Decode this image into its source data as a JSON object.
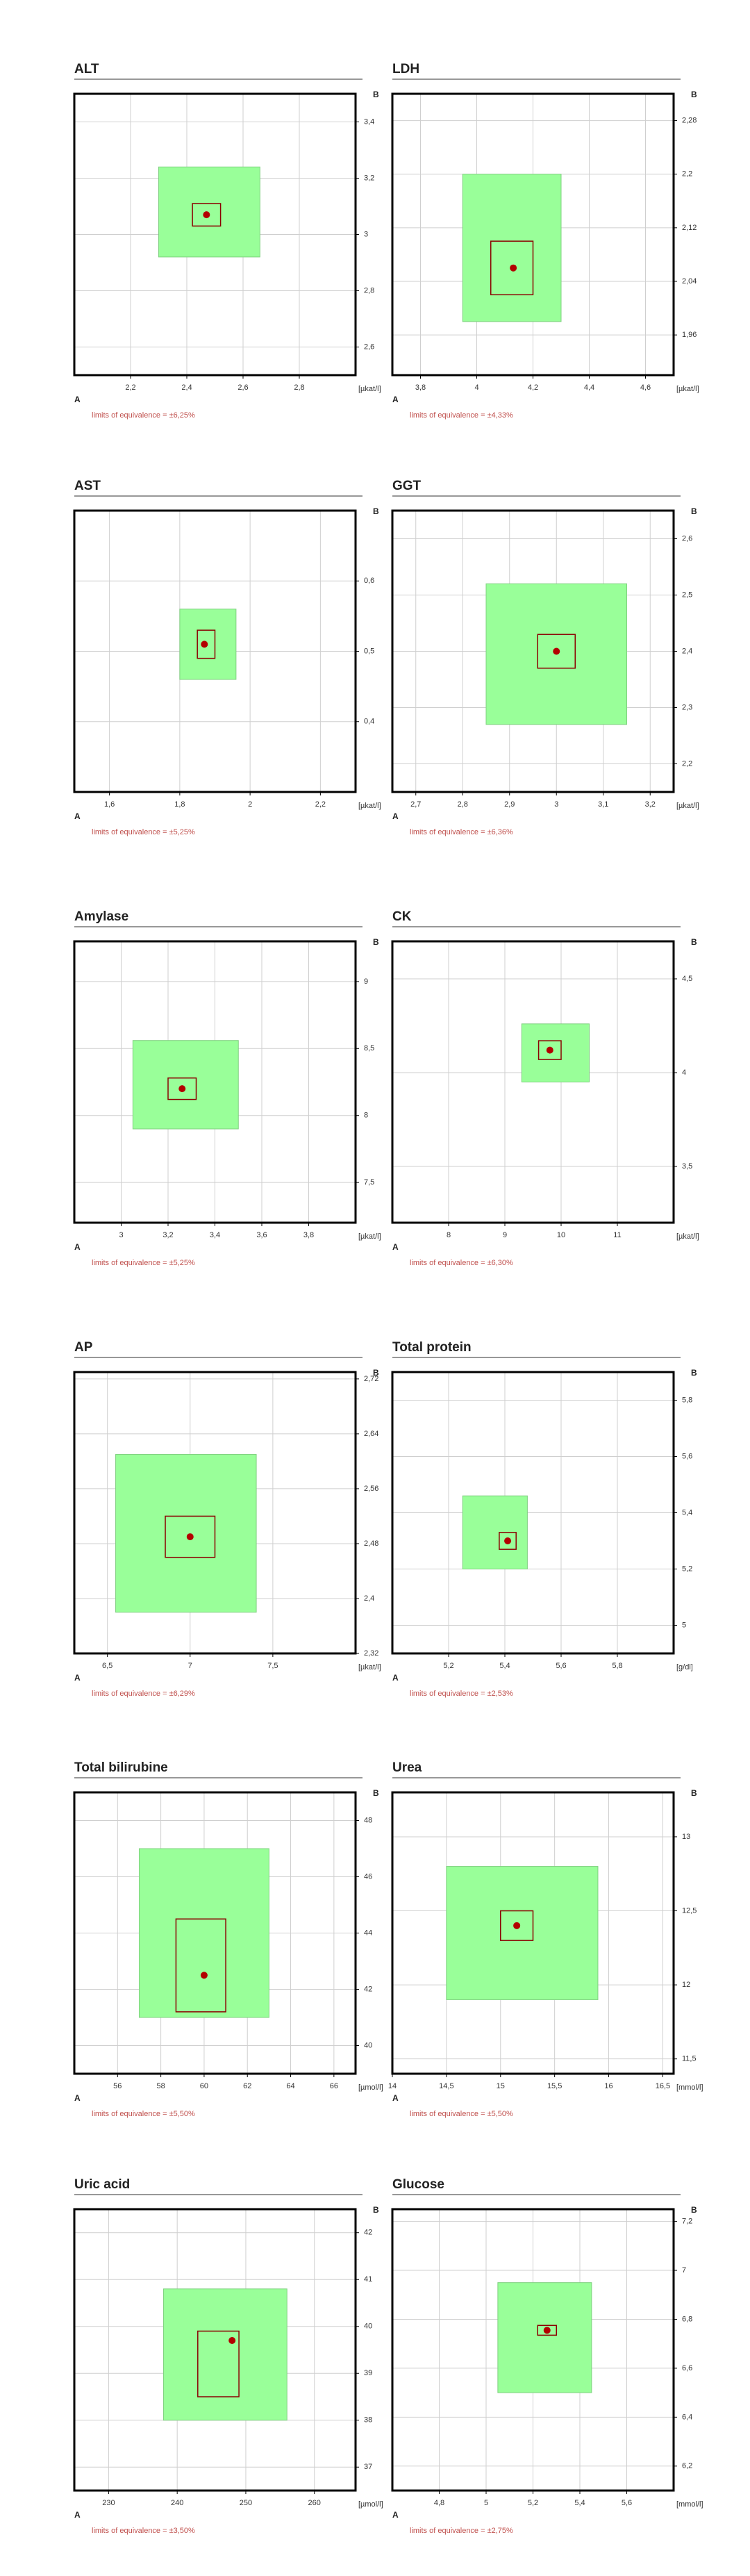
{
  "chart_data": [
    {
      "type": "equivalence",
      "title": "ALT",
      "x_label": "A",
      "y_label": "B",
      "unit": "[µkat/l]",
      "note": "limits of equivalence = ±6,25%",
      "xlim": [
        2.0,
        3.0
      ],
      "xticks": [
        {
          "value": 2.2,
          "label": "2,2"
        },
        {
          "value": 2.4,
          "label": "2,4"
        },
        {
          "value": 2.6,
          "label": "2,6"
        },
        {
          "value": 2.8,
          "label": "2,8"
        }
      ],
      "ylim": [
        2.5,
        3.5
      ],
      "yticks": [
        {
          "value": 2.6,
          "label": "2,6"
        },
        {
          "value": 2.8,
          "label": "2,8"
        },
        3,
        {
          "value": 3.2,
          "label": "3,2"
        },
        {
          "value": 3.4,
          "label": "3,4"
        }
      ],
      "limits_box": {
        "x": [
          2.3,
          2.66
        ],
        "y": [
          2.92,
          3.24
        ]
      },
      "confidence_box": {
        "x": [
          2.42,
          2.52
        ],
        "y": [
          3.03,
          3.11
        ]
      },
      "point": {
        "x": 2.47,
        "y": 3.07
      },
      "colors": {
        "limits": "#99ff99",
        "confidence": "#8b0000",
        "point": "#b30000"
      }
    },
    {
      "type": "equivalence",
      "title": "LDH",
      "x_label": "A",
      "y_label": "B",
      "unit": "[µkat/l]",
      "note": "limits of equivalence = ±4,33%",
      "xlim": [
        3.7,
        4.7
      ],
      "xticks": [
        {
          "value": 3.8,
          "label": "3,8"
        },
        4,
        {
          "value": 4.2,
          "label": "4,2"
        },
        {
          "value": 4.4,
          "label": "4,4"
        },
        {
          "value": 4.6,
          "label": "4,6"
        }
      ],
      "ylim": [
        1.9,
        2.32
      ],
      "yticks": [
        {
          "value": 1.96,
          "label": "1,96"
        },
        {
          "value": 2.04,
          "label": "2,04"
        },
        {
          "value": 2.12,
          "label": "2,12"
        },
        {
          "value": 2.2,
          "label": "2,2"
        },
        {
          "value": 2.28,
          "label": "2,28"
        }
      ],
      "limits_box": {
        "x": [
          3.95,
          4.3
        ],
        "y": [
          1.98,
          2.2
        ]
      },
      "confidence_box": {
        "x": [
          4.05,
          4.2
        ],
        "y": [
          2.02,
          2.1
        ]
      },
      "point": {
        "x": 4.13,
        "y": 2.06
      },
      "colors": {
        "limits": "#99ff99",
        "confidence": "#8b0000",
        "point": "#b30000"
      }
    },
    {
      "type": "equivalence",
      "title": "AST",
      "x_label": "A",
      "y_label": "B",
      "unit": "[µkat/l]",
      "note": "limits of equivalence = ±5,25%",
      "xlim": [
        1.5,
        2.3
      ],
      "xticks": [
        {
          "value": 1.6,
          "label": "1,6"
        },
        {
          "value": 1.8,
          "label": "1,8"
        },
        2,
        {
          "value": 2.2,
          "label": "2,2"
        }
      ],
      "ylim": [
        0.3,
        0.7
      ],
      "yticks": [
        {
          "value": 0.4,
          "label": "0,4"
        },
        {
          "value": 0.5,
          "label": "0,5"
        },
        {
          "value": 0.6,
          "label": "0,6"
        }
      ],
      "limits_box": {
        "x": [
          1.8,
          1.96
        ],
        "y": [
          0.46,
          0.56
        ]
      },
      "confidence_box": {
        "x": [
          1.85,
          1.9
        ],
        "y": [
          0.49,
          0.53
        ]
      },
      "point": {
        "x": 1.87,
        "y": 0.51
      },
      "colors": {
        "limits": "#99ff99",
        "confidence": "#8b0000",
        "point": "#b30000"
      }
    },
    {
      "type": "equivalence",
      "title": "GGT",
      "x_label": "A",
      "y_label": "B",
      "unit": "[µkat/l]",
      "note": "limits of equivalence = ±6,36%",
      "xlim": [
        2.65,
        3.25
      ],
      "xticks": [
        {
          "value": 2.7,
          "label": "2,7"
        },
        {
          "value": 2.8,
          "label": "2,8"
        },
        {
          "value": 2.9,
          "label": "2,9"
        },
        3,
        {
          "value": 3.1,
          "label": "3,1"
        },
        {
          "value": 3.2,
          "label": "3,2"
        }
      ],
      "ylim": [
        2.15,
        2.65
      ],
      "yticks": [
        {
          "value": 2.2,
          "label": "2,2"
        },
        {
          "value": 2.3,
          "label": "2,3"
        },
        {
          "value": 2.4,
          "label": "2,4"
        },
        {
          "value": 2.5,
          "label": "2,5"
        },
        {
          "value": 2.6,
          "label": "2,6"
        }
      ],
      "limits_box": {
        "x": [
          2.85,
          3.15
        ],
        "y": [
          2.27,
          2.52
        ]
      },
      "confidence_box": {
        "x": [
          2.96,
          3.04
        ],
        "y": [
          2.37,
          2.43
        ]
      },
      "point": {
        "x": 3.0,
        "y": 2.4
      },
      "colors": {
        "limits": "#99ff99",
        "confidence": "#8b0000",
        "point": "#b30000"
      }
    },
    {
      "type": "equivalence",
      "title": "Amylase",
      "x_label": "A",
      "y_label": "B",
      "unit": "[µkat/l]",
      "note": "limits of equivalence = ±5,25%",
      "xlim": [
        2.8,
        4.0
      ],
      "xticks": [
        3,
        {
          "value": 3.2,
          "label": "3,2"
        },
        {
          "value": 3.4,
          "label": "3,4"
        },
        {
          "value": 3.6,
          "label": "3,6"
        },
        {
          "value": 3.8,
          "label": "3,8"
        }
      ],
      "ylim": [
        7.2,
        9.3
      ],
      "yticks": [
        {
          "value": 7.5,
          "label": "7,5"
        },
        8,
        {
          "value": 8.5,
          "label": "8,5"
        },
        9
      ],
      "limits_box": {
        "x": [
          3.05,
          3.5
        ],
        "y": [
          7.9,
          8.56
        ]
      },
      "confidence_box": {
        "x": [
          3.2,
          3.32
        ],
        "y": [
          8.12,
          8.28
        ]
      },
      "point": {
        "x": 3.26,
        "y": 8.2
      },
      "colors": {
        "limits": "#99ff99",
        "confidence": "#8b0000",
        "point": "#b30000"
      }
    },
    {
      "type": "equivalence",
      "title": "CK",
      "x_label": "A",
      "y_label": "B",
      "unit": "[µkat/l]",
      "note": "limits of equivalence = ±6,30%",
      "xlim": [
        7,
        12
      ],
      "xticks": [
        8,
        9,
        10,
        11
      ],
      "ylim": [
        3.2,
        4.7
      ],
      "yticks": [
        {
          "value": 3.5,
          "label": "3,5"
        },
        4,
        {
          "value": 4.5,
          "label": "4,5"
        }
      ],
      "limits_box": {
        "x": [
          9.3,
          10.5
        ],
        "y": [
          3.95,
          4.26
        ]
      },
      "confidence_box": {
        "x": [
          9.6,
          10.0
        ],
        "y": [
          4.07,
          4.17
        ]
      },
      "point": {
        "x": 9.8,
        "y": 4.12
      },
      "colors": {
        "limits": "#99ff99",
        "confidence": "#8b0000",
        "point": "#b30000"
      }
    },
    {
      "type": "equivalence",
      "title": "AP",
      "x_label": "A",
      "y_label": "B",
      "unit": "[µkat/l]",
      "note": "limits of equivalence = ±6,29%",
      "xlim": [
        6.3,
        8.0
      ],
      "xticks": [
        {
          "value": 6.5,
          "label": "6,5"
        },
        7,
        {
          "value": 7.5,
          "label": "7,5"
        }
      ],
      "ylim": [
        2.32,
        2.73
      ],
      "yticks": [
        {
          "value": 2.32,
          "label": "2,32"
        },
        {
          "value": 2.4,
          "label": "2,4"
        },
        {
          "value": 2.48,
          "label": "2,48"
        },
        {
          "value": 2.56,
          "label": "2,56"
        },
        {
          "value": 2.64,
          "label": "2,64"
        },
        {
          "value": 2.72,
          "label": "2,72"
        }
      ],
      "limits_box": {
        "x": [
          6.55,
          7.4
        ],
        "y": [
          2.38,
          2.61
        ]
      },
      "confidence_box": {
        "x": [
          6.85,
          7.15
        ],
        "y": [
          2.46,
          2.52
        ]
      },
      "point": {
        "x": 7.0,
        "y": 2.49
      },
      "colors": {
        "limits": "#99ff99",
        "confidence": "#8b0000",
        "point": "#b30000"
      }
    },
    {
      "type": "equivalence",
      "title": "Total protein",
      "x_label": "A",
      "y_label": "B",
      "unit": "[g/dl]",
      "note": "limits of equivalence = ±2,53%",
      "xlim": [
        5.0,
        6.0
      ],
      "xticks": [
        {
          "value": 5.2,
          "label": "5,2"
        },
        {
          "value": 5.4,
          "label": "5,4"
        },
        {
          "value": 5.6,
          "label": "5,6"
        },
        {
          "value": 5.8,
          "label": "5,8"
        }
      ],
      "ylim": [
        4.9,
        5.9
      ],
      "yticks": [
        5,
        {
          "value": 5.2,
          "label": "5,2"
        },
        {
          "value": 5.4,
          "label": "5,4"
        },
        {
          "value": 5.6,
          "label": "5,6"
        },
        {
          "value": 5.8,
          "label": "5,8"
        }
      ],
      "limits_box": {
        "x": [
          5.25,
          5.48
        ],
        "y": [
          5.2,
          5.46
        ]
      },
      "confidence_box": {
        "x": [
          5.38,
          5.44
        ],
        "y": [
          5.27,
          5.33
        ]
      },
      "point": {
        "x": 5.41,
        "y": 5.3
      },
      "colors": {
        "limits": "#99ff99",
        "confidence": "#8b0000",
        "point": "#b30000"
      }
    },
    {
      "type": "equivalence",
      "title": "Total bilirubine",
      "x_label": "A",
      "y_label": "B",
      "unit": "[µmol/l]",
      "note": "limits of equivalence = ±5,50%",
      "xlim": [
        54,
        67
      ],
      "xticks": [
        56,
        58,
        60,
        62,
        64,
        66
      ],
      "ylim": [
        39,
        49
      ],
      "yticks": [
        40,
        42,
        44,
        46,
        48
      ],
      "limits_box": {
        "x": [
          57,
          63
        ],
        "y": [
          41,
          47
        ]
      },
      "confidence_box": {
        "x": [
          58.7,
          61
        ],
        "y": [
          41.2,
          44.5
        ]
      },
      "point": {
        "x": 60,
        "y": 42.5
      },
      "colors": {
        "limits": "#99ff99",
        "confidence": "#8b0000",
        "point": "#b30000"
      }
    },
    {
      "type": "equivalence",
      "title": "Urea",
      "x_label": "A",
      "y_label": "B",
      "unit": "[mmol/l]",
      "note": "limits of equivalence = ±5,50%",
      "xlim": [
        14,
        16.6
      ],
      "xticks": [
        14,
        {
          "value": 14.5,
          "label": "14,5"
        },
        15,
        {
          "value": 15.5,
          "label": "15,5"
        },
        16,
        {
          "value": 16.5,
          "label": "16,5"
        }
      ],
      "ylim": [
        11.4,
        13.3
      ],
      "yticks": [
        {
          "value": 11.5,
          "label": "11,5"
        },
        12,
        {
          "value": 12.5,
          "label": "12,5"
        },
        13
      ],
      "limits_box": {
        "x": [
          14.5,
          15.9
        ],
        "y": [
          11.9,
          12.8
        ]
      },
      "confidence_box": {
        "x": [
          15.0,
          15.3
        ],
        "y": [
          12.3,
          12.5
        ]
      },
      "point": {
        "x": 15.15,
        "y": 12.4
      },
      "colors": {
        "limits": "#99ff99",
        "confidence": "#8b0000",
        "point": "#b30000"
      }
    },
    {
      "type": "equivalence",
      "title": "Uric acid",
      "x_label": "A",
      "y_label": "B",
      "unit": "[µmol/l]",
      "note": "limits of equivalence = ±3,50%",
      "xlim": [
        225,
        266
      ],
      "xticks": [
        230,
        240,
        250,
        260
      ],
      "ylim": [
        36.5,
        42.5
      ],
      "yticks": [
        37,
        38,
        39,
        40,
        41,
        42
      ],
      "limits_box": {
        "x": [
          238,
          256
        ],
        "y": [
          38,
          40.8
        ]
      },
      "confidence_box": {
        "x": [
          243,
          249
        ],
        "y": [
          38.5,
          39.9
        ]
      },
      "point": {
        "x": 248,
        "y": 39.7
      },
      "colors": {
        "limits": "#99ff99",
        "confidence": "#8b0000",
        "point": "#b30000"
      }
    },
    {
      "type": "equivalence",
      "title": "Glucose",
      "x_label": "A",
      "y_label": "B",
      "unit": "[mmol/l]",
      "note": "limits of equivalence = ±2,75%",
      "xlim": [
        4.6,
        5.8
      ],
      "xticks": [
        {
          "value": 4.8,
          "label": "4,8"
        },
        5,
        {
          "value": 5.2,
          "label": "5,2"
        },
        {
          "value": 5.4,
          "label": "5,4"
        },
        {
          "value": 5.6,
          "label": "5,6"
        }
      ],
      "ylim": [
        6.1,
        7.25
      ],
      "yticks": [
        {
          "value": 6.2,
          "label": "6,2"
        },
        {
          "value": 6.4,
          "label": "6,4"
        },
        {
          "value": 6.6,
          "label": "6,6"
        },
        {
          "value": 6.8,
          "label": "6,8"
        },
        7,
        {
          "value": 7.2,
          "label": "7,2"
        }
      ],
      "limits_box": {
        "x": [
          5.05,
          5.45
        ],
        "y": [
          6.5,
          6.95
        ]
      },
      "confidence_box": {
        "x": [
          5.22,
          5.3
        ],
        "y": [
          6.735,
          6.775
        ]
      },
      "point": {
        "x": 5.26,
        "y": 6.755
      },
      "colors": {
        "limits": "#99ff99",
        "confidence": "#8b0000",
        "point": "#b30000"
      }
    }
  ]
}
